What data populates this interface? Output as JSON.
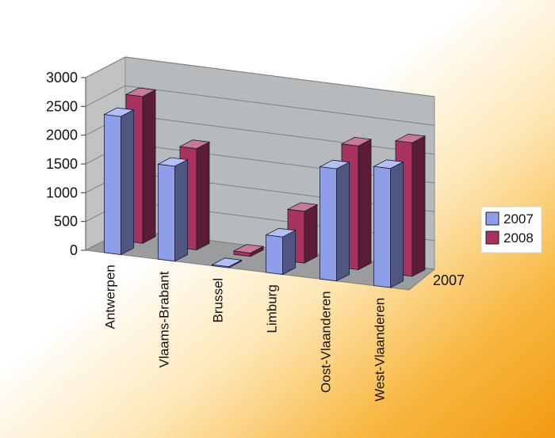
{
  "chart_data": {
    "type": "bar",
    "title": "",
    "xlabel": "",
    "ylabel": "",
    "categories": [
      "Antwerpen",
      "Vlaams-Brabant",
      "Brussel",
      "Limburg",
      "Oost-Vlaanderen",
      "West-Vlaanderen"
    ],
    "series": [
      {
        "name": "2007",
        "color": "#8f9ee8",
        "values": [
          2400,
          1650,
          20,
          650,
          1950,
          2070
        ]
      },
      {
        "name": "2008",
        "color": "#a8325e",
        "values": [
          2550,
          1760,
          60,
          900,
          2150,
          2320
        ]
      }
    ],
    "ylim": [
      0,
      3000
    ],
    "yticks": [
      "0",
      "500",
      "1000",
      "1500",
      "2000",
      "2500",
      "3000"
    ],
    "depth_label": "2007",
    "legend_position": "right",
    "grid": true,
    "style": "3d-clustered-column",
    "colors": {
      "wall": "#b7babc",
      "floor": "#9a9c9e",
      "gridline": "#7e8184"
    }
  }
}
